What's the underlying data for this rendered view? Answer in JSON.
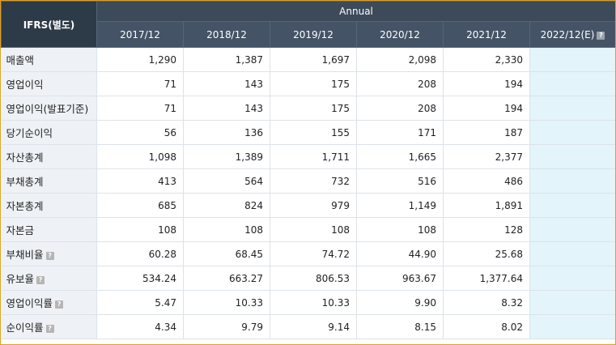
{
  "header": {
    "corner_label": "IFRS(별도)",
    "group_label": "Annual",
    "years": [
      "2017/12",
      "2018/12",
      "2019/12",
      "2020/12",
      "2021/12"
    ],
    "estimate_year": "2022/12(E)",
    "help_glyph": "?"
  },
  "rows": [
    {
      "label": "매출액",
      "values": [
        "1,290",
        "1,387",
        "1,697",
        "2,098",
        "2,330"
      ],
      "help": false
    },
    {
      "label": "영업이익",
      "values": [
        "71",
        "143",
        "175",
        "208",
        "194"
      ],
      "help": false
    },
    {
      "label": "영업이익(발표기준)",
      "values": [
        "71",
        "143",
        "175",
        "208",
        "194"
      ],
      "help": false
    },
    {
      "label": "당기순이익",
      "values": [
        "56",
        "136",
        "155",
        "171",
        "187"
      ],
      "help": false
    },
    {
      "label": "자산총계",
      "values": [
        "1,098",
        "1,389",
        "1,711",
        "1,665",
        "2,377"
      ],
      "help": false
    },
    {
      "label": "부채총계",
      "values": [
        "413",
        "564",
        "732",
        "516",
        "486"
      ],
      "help": false
    },
    {
      "label": "자본총계",
      "values": [
        "685",
        "824",
        "979",
        "1,149",
        "1,891"
      ],
      "help": false
    },
    {
      "label": "자본금",
      "values": [
        "108",
        "108",
        "108",
        "108",
        "128"
      ],
      "help": false
    },
    {
      "label": "부채비율",
      "values": [
        "60.28",
        "68.45",
        "74.72",
        "44.90",
        "25.68"
      ],
      "help": true
    },
    {
      "label": "유보율",
      "values": [
        "534.24",
        "663.27",
        "806.53",
        "963.67",
        "1,377.64"
      ],
      "help": true
    },
    {
      "label": "영업이익률",
      "values": [
        "5.47",
        "10.33",
        "10.33",
        "9.90",
        "8.32"
      ],
      "help": true
    },
    {
      "label": "순이익률",
      "values": [
        "4.34",
        "9.79",
        "9.14",
        "8.15",
        "8.02"
      ],
      "help": true
    }
  ],
  "colors": {
    "header_bg": "#3c4a5a",
    "label_bg": "#eef2f6",
    "estimate_bg": "#e3f4fa",
    "frame_border": "#e0a020"
  }
}
